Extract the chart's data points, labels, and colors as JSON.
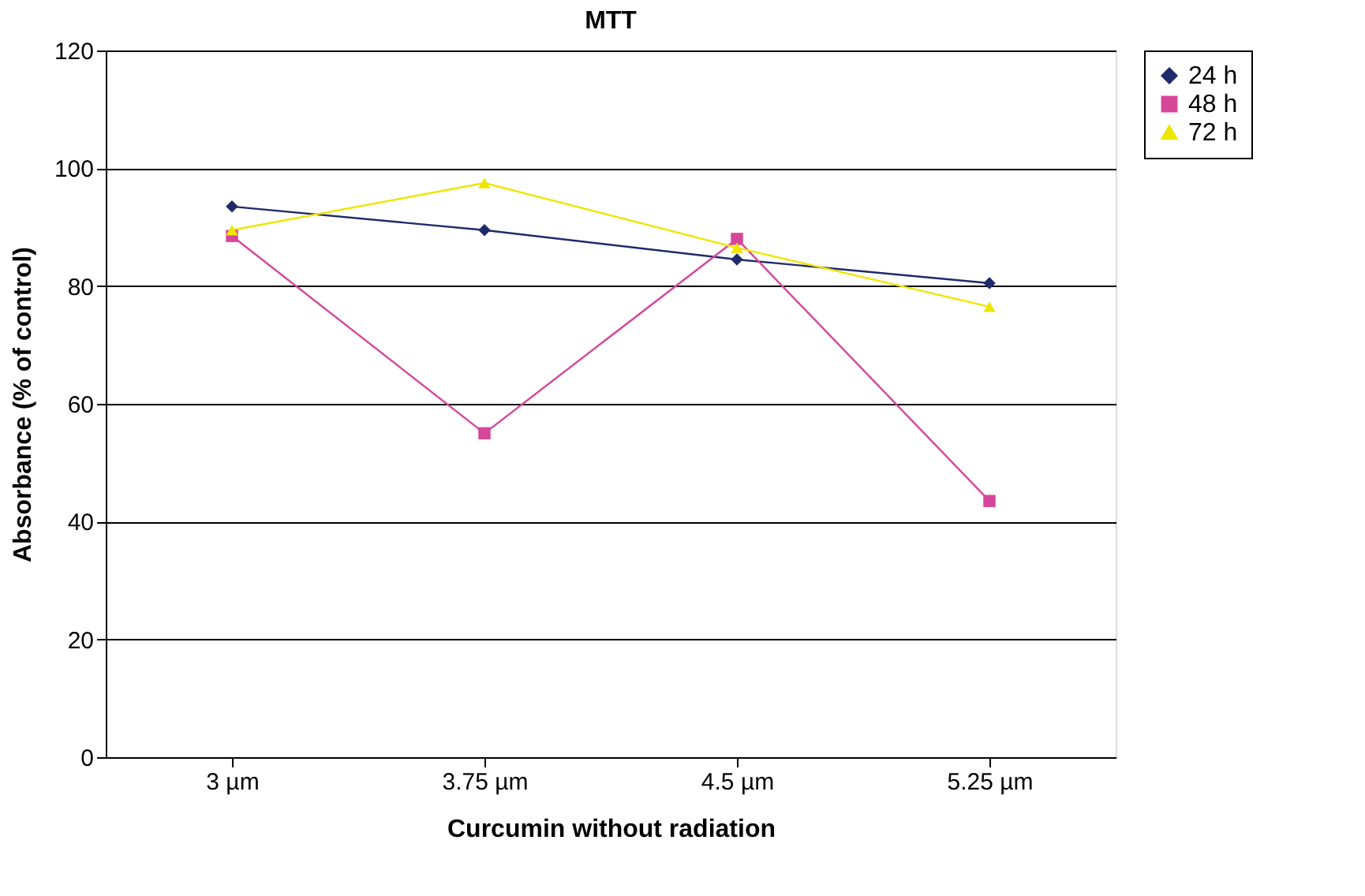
{
  "chart_data": {
    "type": "line",
    "title": "MTT",
    "xlabel": "Curcumin without radiation",
    "ylabel": "Absorbance (% of control)",
    "categories": [
      "3 µm",
      "3.75 µm",
      "4.5 µm",
      "5.25 µm"
    ],
    "series": [
      {
        "name": "24 h",
        "color": "#1f2a6b",
        "marker": "diamond",
        "values": [
          93.5,
          89.5,
          84.5,
          80.5
        ]
      },
      {
        "name": "48 h",
        "color": "#d6479a",
        "marker": "square",
        "values": [
          88.5,
          55,
          88,
          43.5
        ]
      },
      {
        "name": "72 h",
        "color": "#eee600",
        "marker": "triangle",
        "values": [
          89.5,
          97.5,
          86.5,
          76.5
        ]
      }
    ],
    "ylim": [
      0,
      120
    ],
    "yticks": [
      0,
      20,
      40,
      60,
      80,
      100,
      120
    ],
    "grid": "y",
    "legend": "right",
    "line_style": "solid"
  }
}
